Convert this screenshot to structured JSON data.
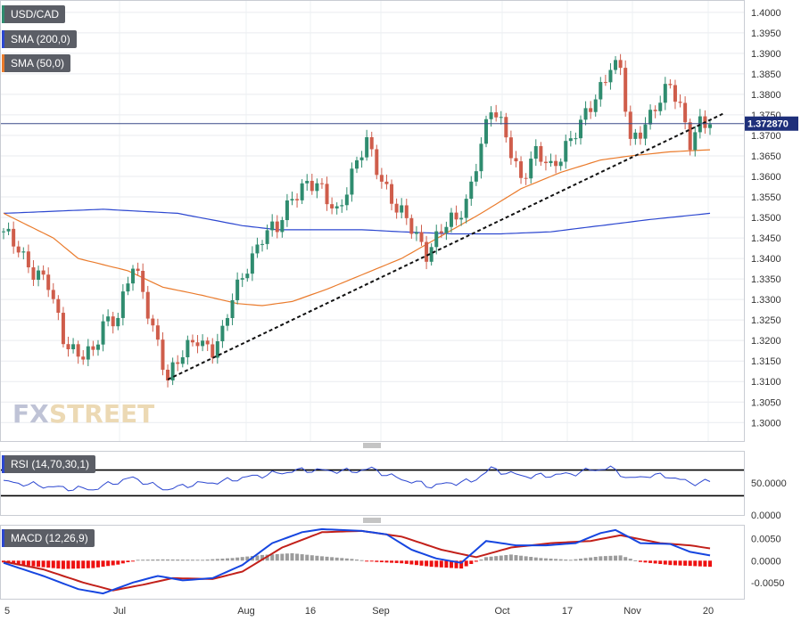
{
  "legend": {
    "instrument": "USD/CAD",
    "sma200": "SMA (200,0)",
    "sma50": "SMA (50,0)",
    "rsi": "RSI (14,70,30,1)",
    "macd": "MACD (12,26,9)"
  },
  "watermark": "FXSTREET",
  "current_price_label": "1.372870",
  "colors": {
    "up": "#2f8c6f",
    "down": "#cf5d4b",
    "sma200": "#2c47d0",
    "sma50": "#ea7b2c",
    "rsi": "#2c47d0",
    "macd_line": "#1646e0",
    "signal_line": "#c2201a",
    "hist_pos": "#9c9c9c",
    "hist_neg": "#ee1111",
    "trendline": "#111111",
    "tag_bg": "#5b5e66"
  },
  "chart_data": [
    {
      "type": "candlestick",
      "title": "USD/CAD",
      "x_tick_labels": [
        "5",
        "Jul",
        "Aug",
        "16",
        "Sep",
        "Oct",
        "17",
        "Nov",
        "20"
      ],
      "y_tick_labels": [
        "1.4000",
        "1.3950",
        "1.3900",
        "1.3850",
        "1.3800",
        "1.3750",
        "1.3700",
        "1.3650",
        "1.3600",
        "1.3550",
        "1.3500",
        "1.3450",
        "1.3400",
        "1.3350",
        "1.3300",
        "1.3250",
        "1.3200",
        "1.3150",
        "1.3100",
        "1.3050",
        "1.3000"
      ],
      "ylim": [
        1.2955,
        1.403
      ],
      "close_path": [
        [
          0,
          1.3455
        ],
        [
          3,
          1.343
        ],
        [
          6,
          1.337
        ],
        [
          9,
          1.333
        ],
        [
          12,
          1.321
        ],
        [
          15,
          1.317
        ],
        [
          18,
          1.316
        ],
        [
          20,
          1.324
        ],
        [
          23,
          1.327
        ],
        [
          26,
          1.338
        ],
        [
          29,
          1.327
        ],
        [
          31,
          1.32
        ],
        [
          33,
          1.311
        ],
        [
          36,
          1.316
        ],
        [
          39,
          1.321
        ],
        [
          42,
          1.318
        ],
        [
          44,
          1.321
        ],
        [
          46,
          1.33
        ],
        [
          49,
          1.339
        ],
        [
          52,
          1.345
        ],
        [
          55,
          1.347
        ],
        [
          58,
          1.356
        ],
        [
          61,
          1.358
        ],
        [
          64,
          1.356
        ],
        [
          67,
          1.352
        ],
        [
          70,
          1.36
        ],
        [
          73,
          1.368
        ],
        [
          76,
          1.36
        ],
        [
          79,
          1.352
        ],
        [
          82,
          1.347
        ],
        [
          85,
          1.342
        ],
        [
          88,
          1.347
        ],
        [
          91,
          1.349
        ],
        [
          93,
          1.354
        ],
        [
          95,
          1.364
        ],
        [
          98,
          1.376
        ],
        [
          101,
          1.37
        ],
        [
          104,
          1.36
        ],
        [
          107,
          1.365
        ],
        [
          110,
          1.362
        ],
        [
          113,
          1.368
        ],
        [
          116,
          1.372
        ],
        [
          119,
          1.379
        ],
        [
          122,
          1.388
        ],
        [
          124,
          1.386
        ],
        [
          126,
          1.367
        ],
        [
          128,
          1.371
        ],
        [
          131,
          1.378
        ],
        [
          134,
          1.3815
        ],
        [
          136,
          1.376
        ],
        [
          138,
          1.369
        ],
        [
          140,
          1.374
        ],
        [
          142,
          1.3729
        ]
      ],
      "sma200_path": [
        [
          0,
          1.351
        ],
        [
          20,
          1.352
        ],
        [
          35,
          1.351
        ],
        [
          48,
          1.348
        ],
        [
          55,
          1.347
        ],
        [
          72,
          1.347
        ],
        [
          80,
          1.3465
        ],
        [
          90,
          1.346
        ],
        [
          100,
          1.346
        ],
        [
          110,
          1.3465
        ],
        [
          120,
          1.348
        ],
        [
          130,
          1.3495
        ],
        [
          142,
          1.351
        ]
      ],
      "sma50_path": [
        [
          0,
          1.351
        ],
        [
          5,
          1.348
        ],
        [
          10,
          1.345
        ],
        [
          15,
          1.34
        ],
        [
          25,
          1.337
        ],
        [
          32,
          1.333
        ],
        [
          40,
          1.331
        ],
        [
          47,
          1.329
        ],
        [
          52,
          1.3285
        ],
        [
          58,
          1.3295
        ],
        [
          65,
          1.3325
        ],
        [
          72,
          1.336
        ],
        [
          80,
          1.34
        ],
        [
          88,
          1.3455
        ],
        [
          96,
          1.351
        ],
        [
          104,
          1.357
        ],
        [
          112,
          1.361
        ],
        [
          120,
          1.364
        ],
        [
          126,
          1.365
        ],
        [
          134,
          1.366
        ],
        [
          142,
          1.3665
        ]
      ],
      "trendline": [
        [
          33,
          1.3105
        ],
        [
          145,
          1.3755
        ]
      ],
      "current_price": 1.37287
    },
    {
      "type": "line",
      "title": "RSI (14,70,30,1)",
      "y_tick_labels": [
        "50.0000",
        "0.0000"
      ],
      "ylim": [
        0,
        100
      ],
      "levels": [
        70,
        30
      ],
      "values_path": [
        [
          0,
          52
        ],
        [
          6,
          47
        ],
        [
          12,
          42
        ],
        [
          18,
          40
        ],
        [
          22,
          50
        ],
        [
          26,
          58
        ],
        [
          30,
          46
        ],
        [
          33,
          40
        ],
        [
          38,
          48
        ],
        [
          44,
          52
        ],
        [
          48,
          58
        ],
        [
          52,
          62
        ],
        [
          56,
          66
        ],
        [
          60,
          70
        ],
        [
          66,
          69
        ],
        [
          70,
          68
        ],
        [
          74,
          72
        ],
        [
          78,
          60
        ],
        [
          82,
          52
        ],
        [
          86,
          45
        ],
        [
          90,
          50
        ],
        [
          94,
          52
        ],
        [
          98,
          72
        ],
        [
          102,
          64
        ],
        [
          106,
          60
        ],
        [
          110,
          62
        ],
        [
          114,
          64
        ],
        [
          118,
          70
        ],
        [
          122,
          73
        ],
        [
          126,
          56
        ],
        [
          130,
          62
        ],
        [
          134,
          60
        ],
        [
          138,
          50
        ],
        [
          142,
          52
        ]
      ]
    },
    {
      "type": "line",
      "title": "MACD (12,26,9)",
      "y_tick_labels": [
        "0.0050",
        "0.0000",
        "-0.0050"
      ],
      "ylim": [
        -0.0087,
        0.0082
      ],
      "macd_path": [
        [
          0,
          -0.0005
        ],
        [
          8,
          -0.0035
        ],
        [
          15,
          -0.0065
        ],
        [
          20,
          -0.0075
        ],
        [
          26,
          -0.005
        ],
        [
          31,
          -0.0035
        ],
        [
          36,
          -0.0045
        ],
        [
          42,
          -0.004
        ],
        [
          48,
          -0.001
        ],
        [
          54,
          0.004
        ],
        [
          60,
          0.0065
        ],
        [
          64,
          0.0072
        ],
        [
          68,
          0.007
        ],
        [
          72,
          0.0068
        ],
        [
          77,
          0.006
        ],
        [
          82,
          0.0025
        ],
        [
          87,
          0.0005
        ],
        [
          92,
          -0.0005
        ],
        [
          97,
          0.0045
        ],
        [
          103,
          0.0035
        ],
        [
          109,
          0.0035
        ],
        [
          115,
          0.004
        ],
        [
          120,
          0.0063
        ],
        [
          123,
          0.007
        ],
        [
          128,
          0.004
        ],
        [
          134,
          0.0038
        ],
        [
          138,
          0.002
        ],
        [
          142,
          0.0012
        ]
      ],
      "signal_path": [
        [
          0,
          -0.0002
        ],
        [
          8,
          -0.002
        ],
        [
          16,
          -0.005
        ],
        [
          22,
          -0.0068
        ],
        [
          28,
          -0.0055
        ],
        [
          34,
          -0.004
        ],
        [
          42,
          -0.0042
        ],
        [
          48,
          -0.0025
        ],
        [
          56,
          0.003
        ],
        [
          64,
          0.0065
        ],
        [
          72,
          0.0068
        ],
        [
          80,
          0.0055
        ],
        [
          88,
          0.0025
        ],
        [
          95,
          0.0008
        ],
        [
          102,
          0.003
        ],
        [
          110,
          0.004
        ],
        [
          118,
          0.0045
        ],
        [
          124,
          0.0058
        ],
        [
          132,
          0.004
        ],
        [
          138,
          0.0035
        ],
        [
          142,
          0.0028
        ]
      ],
      "histogram_path": [
        [
          0,
          -0.0004
        ],
        [
          6,
          -0.0013
        ],
        [
          12,
          -0.0019
        ],
        [
          18,
          -0.0017
        ],
        [
          23,
          -0.0009
        ],
        [
          27,
          0.0002
        ],
        [
          32,
          0.0003
        ],
        [
          40,
          0.0002
        ],
        [
          46,
          0.0006
        ],
        [
          52,
          0.0013
        ],
        [
          58,
          0.0017
        ],
        [
          64,
          0.001
        ],
        [
          70,
          0.0004
        ],
        [
          75,
          -0.0003
        ],
        [
          80,
          -0.0006
        ],
        [
          86,
          -0.0014
        ],
        [
          92,
          -0.0018
        ],
        [
          97,
          0.0008
        ],
        [
          102,
          0.0014
        ],
        [
          108,
          0.0006
        ],
        [
          114,
          0.0002
        ],
        [
          120,
          0.001
        ],
        [
          124,
          0.0012
        ],
        [
          128,
          -0.0003
        ],
        [
          134,
          -0.001
        ],
        [
          142,
          -0.0014
        ]
      ]
    }
  ]
}
